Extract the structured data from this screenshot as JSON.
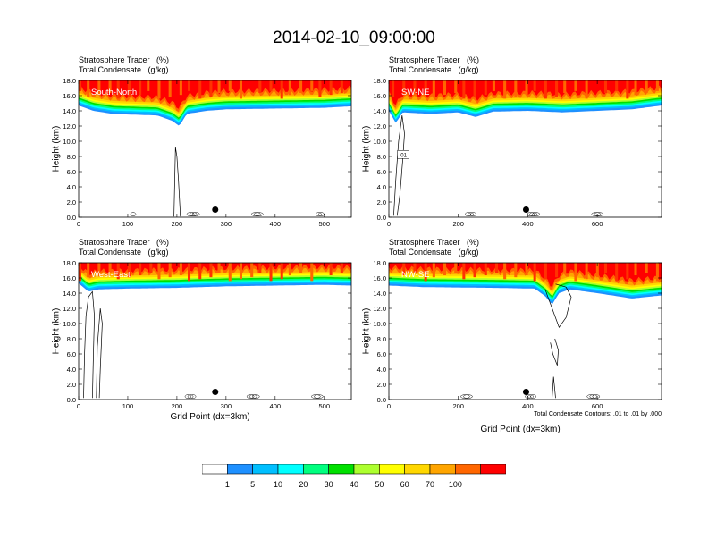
{
  "chart_data": {
    "type": "contour",
    "title": "2014-02-10_09:00:00",
    "colors": [
      "#ffffff",
      "#1e90ff",
      "#00bfff",
      "#00ffff",
      "#00ff7f",
      "#00e000",
      "#adff2f",
      "#ffff00",
      "#ffd700",
      "#ffa500",
      "#ff6600",
      "#ff0000"
    ],
    "colorbar_labels": [
      "1",
      "5",
      "10",
      "20",
      "30",
      "40",
      "50",
      "60",
      "70",
      "100"
    ],
    "panels": [
      {
        "id": "south-north",
        "name": "South-North",
        "subtitle1": "Stratosphere Tracer   (%)",
        "subtitle2": "Total Condensate   (g/kg)",
        "ylabel": "Height (km)",
        "xlabel": "",
        "yticks": [
          "0.0",
          "2.0",
          "4.0",
          "6.0",
          "8.0",
          "10.0",
          "12.0",
          "14.0",
          "16.0",
          "18.0"
        ],
        "xticks": [
          {
            "v": 0,
            "t": "0"
          },
          {
            "v": 100,
            "t": "100"
          },
          {
            "v": 200,
            "t": "200"
          },
          {
            "v": 300,
            "t": "300"
          },
          {
            "v": 400,
            "t": "400"
          },
          {
            "v": 500,
            "t": "500"
          }
        ],
        "xmax": 555,
        "ymax": 18,
        "tropo_base": [
          [
            0,
            14.7
          ],
          [
            30,
            14.0
          ],
          [
            70,
            13.6
          ],
          [
            110,
            13.5
          ],
          [
            160,
            13.4
          ],
          [
            190,
            12.7
          ],
          [
            205,
            12.0
          ],
          [
            220,
            13.6
          ],
          [
            260,
            14.0
          ],
          [
            300,
            14.2
          ],
          [
            400,
            14.3
          ],
          [
            500,
            14.4
          ],
          [
            555,
            14.6
          ]
        ],
        "contours": [
          [
            [
              194,
              0.1
            ],
            [
              196,
              6.0
            ],
            [
              197,
              9.2
            ],
            [
              200,
              8.0
            ],
            [
              203,
              5.0
            ],
            [
              206,
              1.5
            ],
            [
              207,
              0.1
            ]
          ]
        ],
        "marker": {
          "x": 278,
          "y": 1.0
        },
        "note": ""
      },
      {
        "id": "sw-ne",
        "name": "SW-NE",
        "subtitle1": "Stratosphere Tracer   (%)",
        "subtitle2": "Total Condensate   (g/kg)",
        "ylabel": "Height (km)",
        "xlabel": "",
        "yticks": [
          "0.0",
          "2.0",
          "4.0",
          "6.0",
          "8.0",
          "10.0",
          "12.0",
          "14.0",
          "16.0",
          "18.0"
        ],
        "xticks": [
          {
            "v": 0,
            "t": "0"
          },
          {
            "v": 200,
            "t": "200"
          },
          {
            "v": 400,
            "t": "400"
          },
          {
            "v": 600,
            "t": "600"
          }
        ],
        "xmax": 785,
        "ymax": 18,
        "tropo_base": [
          [
            0,
            14.0
          ],
          [
            20,
            12.4
          ],
          [
            40,
            13.8
          ],
          [
            120,
            13.6
          ],
          [
            200,
            13.8
          ],
          [
            250,
            13.2
          ],
          [
            300,
            13.9
          ],
          [
            400,
            14.0
          ],
          [
            500,
            13.8
          ],
          [
            600,
            14.0
          ],
          [
            700,
            14.2
          ],
          [
            785,
            14.7
          ]
        ],
        "contours": [
          [
            [
              14,
              0.2
            ],
            [
              20,
              5.0
            ],
            [
              28,
              10.0
            ],
            [
              38,
              13.4
            ],
            [
              45,
              11.0
            ],
            [
              40,
              7.5
            ],
            [
              32,
              3.0
            ],
            [
              24,
              0.2
            ]
          ]
        ],
        "contour_label": {
          "x": 30,
          "y": 8.2,
          "text": ".01"
        },
        "marker": {
          "x": 395,
          "y": 1.0
        },
        "note": ""
      },
      {
        "id": "west-east",
        "name": "West-East",
        "subtitle1": "Stratosphere Tracer   (%)",
        "subtitle2": "Total Condensate   (g/kg)",
        "ylabel": "Height (km)",
        "xlabel": "Grid Point (dx=3km)",
        "yticks": [
          "0.0",
          "2.0",
          "4.0",
          "6.0",
          "8.0",
          "10.0",
          "12.0",
          "14.0",
          "16.0",
          "18.0"
        ],
        "xticks": [
          {
            "v": 0,
            "t": "0"
          },
          {
            "v": 100,
            "t": "100"
          },
          {
            "v": 200,
            "t": "200"
          },
          {
            "v": 300,
            "t": "300"
          },
          {
            "v": 400,
            "t": "400"
          },
          {
            "v": 500,
            "t": "500"
          }
        ],
        "xmax": 555,
        "ymax": 18,
        "tropo_base": [
          [
            0,
            15.3
          ],
          [
            20,
            14.2
          ],
          [
            40,
            14.5
          ],
          [
            100,
            14.6
          ],
          [
            200,
            14.7
          ],
          [
            300,
            14.9
          ],
          [
            400,
            15.0
          ],
          [
            500,
            15.1
          ],
          [
            555,
            15.0
          ]
        ],
        "contours": [
          [
            [
              10,
              0.2
            ],
            [
              12,
              6.0
            ],
            [
              15,
              11.0
            ],
            [
              20,
              13.5
            ],
            [
              28,
              14.2
            ],
            [
              32,
              11.0
            ],
            [
              30,
              6.0
            ],
            [
              28,
              0.2
            ]
          ],
          [
            [
              36,
              0.2
            ],
            [
              38,
              7.0
            ],
            [
              44,
              12.0
            ],
            [
              48,
              10.0
            ],
            [
              44,
              4.0
            ],
            [
              42,
              0.2
            ]
          ]
        ],
        "marker": {
          "x": 278,
          "y": 1.0
        },
        "note": ""
      },
      {
        "id": "nw-se",
        "name": "NW-SE",
        "subtitle1": "Stratosphere Tracer   (%)",
        "subtitle2": "Total Condensate   (g/kg)",
        "ylabel": "Height (km)",
        "xlabel": "Grid Point (dx=3km)",
        "yticks": [
          "0.0",
          "2.0",
          "4.0",
          "6.0",
          "8.0",
          "10.0",
          "12.0",
          "14.0",
          "16.0",
          "18.0"
        ],
        "xticks": [
          {
            "v": 0,
            "t": "0"
          },
          {
            "v": 200,
            "t": "200"
          },
          {
            "v": 400,
            "t": "400"
          },
          {
            "v": 600,
            "t": "600"
          }
        ],
        "xmax": 785,
        "ymax": 18,
        "tropo_base": [
          [
            0,
            15.0
          ],
          [
            100,
            14.8
          ],
          [
            300,
            14.7
          ],
          [
            420,
            14.6
          ],
          [
            450,
            13.6
          ],
          [
            470,
            12.5
          ],
          [
            490,
            14.0
          ],
          [
            520,
            14.5
          ],
          [
            600,
            14.0
          ],
          [
            700,
            13.3
          ],
          [
            785,
            13.7
          ]
        ],
        "contours": [
          [
            [
              450,
              14.5
            ],
            [
              470,
              12.0
            ],
            [
              490,
              9.5
            ],
            [
              510,
              10.8
            ],
            [
              525,
              13.5
            ],
            [
              510,
              14.8
            ],
            [
              480,
              15.2
            ]
          ],
          [
            [
              465,
              7.5
            ],
            [
              472,
              6.0
            ],
            [
              485,
              4.5
            ],
            [
              488,
              6.5
            ],
            [
              478,
              8.0
            ]
          ],
          [
            [
              470,
              0.2
            ],
            [
              474,
              3.0
            ],
            [
              480,
              0.2
            ]
          ]
        ],
        "marker": {
          "x": 395,
          "y": 1.0
        },
        "note": "Total Condensate Contours: .01 to .01 by .000"
      }
    ]
  }
}
